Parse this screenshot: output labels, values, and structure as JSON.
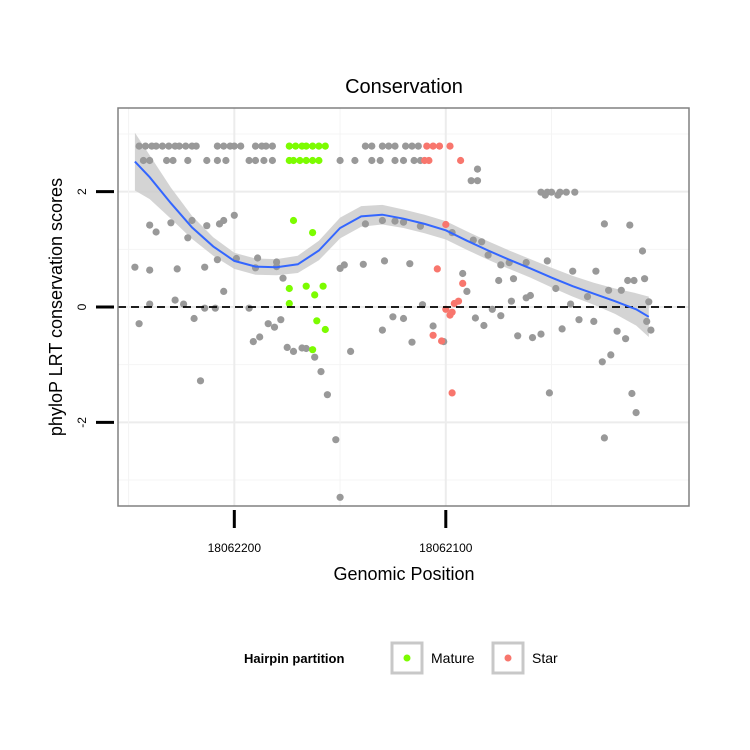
{
  "chart_data": {
    "type": "scatter",
    "title": "Conservation",
    "xlabel": "Genomic Position",
    "ylabel": "phyloP LRT conservation scores",
    "x_reversed": true,
    "xlim": [
      18062255,
      18061985
    ],
    "ylim": [
      -3.45,
      3.45
    ],
    "x_ticks": [
      {
        "value": 18062200,
        "label": "18062200"
      },
      {
        "value": 18062100,
        "label": "18062100"
      }
    ],
    "y_ticks": [
      {
        "value": -2,
        "label": "-2"
      },
      {
        "value": 0,
        "label": "0"
      },
      {
        "value": 2,
        "label": "2"
      }
    ],
    "grid": true,
    "reference_line": {
      "y": 0,
      "style": "dashed"
    },
    "legend": {
      "title": "Hairpin partition",
      "placement": "bottom",
      "entries": [
        {
          "label": "Mature",
          "color": "#7cfc00"
        },
        {
          "label": "Star",
          "color": "#f8766d"
        }
      ]
    },
    "colors": {
      "other": "#999999",
      "mature": "#7cfc00",
      "star": "#f8766d",
      "smooth": "#3366ff",
      "band": "#cccccc"
    },
    "series": [
      {
        "name": "Mature",
        "points": [
          [
            18062174,
            2.79
          ],
          [
            18062171,
            2.79
          ],
          [
            18062168,
            2.79
          ],
          [
            18062166,
            2.79
          ],
          [
            18062163,
            2.79
          ],
          [
            18062160,
            2.79
          ],
          [
            18062157,
            2.79
          ],
          [
            18062174,
            2.54
          ],
          [
            18062172,
            2.54
          ],
          [
            18062169,
            2.54
          ],
          [
            18062166,
            2.54
          ],
          [
            18062163,
            2.54
          ],
          [
            18062160,
            2.54
          ],
          [
            18062172,
            1.5
          ],
          [
            18062163,
            1.29
          ],
          [
            18062174,
            0.32
          ],
          [
            18062166,
            0.36
          ],
          [
            18062158,
            0.36
          ],
          [
            18062162,
            0.21
          ],
          [
            18062174,
            0.06
          ],
          [
            18062161,
            -0.24
          ],
          [
            18062157,
            -0.39
          ],
          [
            18062163,
            -0.74
          ]
        ]
      },
      {
        "name": "Star",
        "points": [
          [
            18062109,
            2.79
          ],
          [
            18062106,
            2.79
          ],
          [
            18062103,
            2.79
          ],
          [
            18062098,
            2.79
          ],
          [
            18062110,
            2.54
          ],
          [
            18062108,
            2.54
          ],
          [
            18062093,
            2.54
          ],
          [
            18062100,
            1.43
          ],
          [
            18062104,
            0.66
          ],
          [
            18062092,
            0.41
          ],
          [
            18062094,
            0.1
          ],
          [
            18062096,
            0.06
          ],
          [
            18062100,
            -0.04
          ],
          [
            18062097,
            -0.09
          ],
          [
            18062098,
            -0.14
          ],
          [
            18062106,
            -0.49
          ],
          [
            18062102,
            -0.59
          ],
          [
            18062097,
            -1.49
          ]
        ]
      },
      {
        "name": "",
        "points": [
          [
            18062245,
            2.79
          ],
          [
            18062242,
            2.79
          ],
          [
            18062239,
            2.79
          ],
          [
            18062237,
            2.79
          ],
          [
            18062234,
            2.79
          ],
          [
            18062231,
            2.79
          ],
          [
            18062228,
            2.79
          ],
          [
            18062226,
            2.79
          ],
          [
            18062223,
            2.79
          ],
          [
            18062220,
            2.79
          ],
          [
            18062218,
            2.79
          ],
          [
            18062208,
            2.79
          ],
          [
            18062205,
            2.79
          ],
          [
            18062202,
            2.79
          ],
          [
            18062200,
            2.79
          ],
          [
            18062197,
            2.79
          ],
          [
            18062190,
            2.79
          ],
          [
            18062187,
            2.79
          ],
          [
            18062185,
            2.79
          ],
          [
            18062182,
            2.79
          ],
          [
            18062138,
            2.79
          ],
          [
            18062135,
            2.79
          ],
          [
            18062130,
            2.79
          ],
          [
            18062127,
            2.79
          ],
          [
            18062124,
            2.79
          ],
          [
            18062119,
            2.79
          ],
          [
            18062116,
            2.79
          ],
          [
            18062113,
            2.79
          ],
          [
            18062243,
            2.54
          ],
          [
            18062240,
            2.54
          ],
          [
            18062232,
            2.54
          ],
          [
            18062229,
            2.54
          ],
          [
            18062222,
            2.54
          ],
          [
            18062213,
            2.54
          ],
          [
            18062208,
            2.54
          ],
          [
            18062204,
            2.54
          ],
          [
            18062193,
            2.54
          ],
          [
            18062190,
            2.54
          ],
          [
            18062186,
            2.54
          ],
          [
            18062182,
            2.54
          ],
          [
            18062150,
            2.54
          ],
          [
            18062143,
            2.54
          ],
          [
            18062135,
            2.54
          ],
          [
            18062131,
            2.54
          ],
          [
            18062124,
            2.54
          ],
          [
            18062120,
            2.54
          ],
          [
            18062115,
            2.54
          ],
          [
            18062112,
            2.54
          ],
          [
            18062085,
            2.39
          ],
          [
            18062088,
            2.19
          ],
          [
            18062085,
            2.19
          ],
          [
            18062055,
            1.99
          ],
          [
            18062052,
            1.99
          ],
          [
            18062050,
            1.99
          ],
          [
            18062053,
            1.94
          ],
          [
            18062046,
            1.99
          ],
          [
            18062043,
            1.99
          ],
          [
            18062039,
            1.99
          ],
          [
            18062047,
            1.94
          ],
          [
            18062025,
            1.44
          ],
          [
            18062013,
            1.42
          ],
          [
            18062007,
            0.97
          ],
          [
            18062200,
            1.59
          ],
          [
            18062205,
            1.5
          ],
          [
            18062207,
            1.44
          ],
          [
            18062220,
            1.5
          ],
          [
            18062213,
            1.41
          ],
          [
            18062230,
            1.46
          ],
          [
            18062237,
            1.3
          ],
          [
            18062240,
            1.42
          ],
          [
            18062222,
            1.2
          ],
          [
            18062208,
            0.82
          ],
          [
            18062199,
            0.84
          ],
          [
            18062189,
            0.85
          ],
          [
            18062180,
            0.78
          ],
          [
            18062177,
            0.5
          ],
          [
            18062130,
            1.5
          ],
          [
            18062124,
            1.49
          ],
          [
            18062138,
            1.44
          ],
          [
            18062120,
            1.47
          ],
          [
            18062112,
            1.4
          ],
          [
            18062097,
            1.29
          ],
          [
            18062087,
            1.16
          ],
          [
            18062083,
            1.13
          ],
          [
            18062070,
            0.77
          ],
          [
            18062062,
            0.77
          ],
          [
            18062080,
            0.9
          ],
          [
            18062074,
            0.73
          ],
          [
            18062052,
            0.8
          ],
          [
            18062040,
            0.62
          ],
          [
            18062029,
            0.62
          ],
          [
            18062247,
            0.69
          ],
          [
            18062240,
            0.64
          ],
          [
            18062227,
            0.66
          ],
          [
            18062214,
            0.69
          ],
          [
            18062190,
            0.68
          ],
          [
            18062180,
            0.7
          ],
          [
            18062150,
            0.67
          ],
          [
            18062148,
            0.73
          ],
          [
            18062139,
            0.74
          ],
          [
            18062129,
            0.8
          ],
          [
            18062117,
            0.75
          ],
          [
            18062092,
            0.58
          ],
          [
            18062075,
            0.46
          ],
          [
            18062068,
            0.49
          ],
          [
            18062017,
            0.29
          ],
          [
            18062014,
            0.46
          ],
          [
            18062011,
            0.46
          ],
          [
            18062006,
            0.49
          ],
          [
            18062023,
            0.29
          ],
          [
            18062004,
            0.09
          ],
          [
            18062245,
            -0.29
          ],
          [
            18062240,
            0.05
          ],
          [
            18062228,
            0.12
          ],
          [
            18062224,
            0.05
          ],
          [
            18062219,
            -0.2
          ],
          [
            18062214,
            -0.02
          ],
          [
            18062209,
            -0.02
          ],
          [
            18062205,
            0.27
          ],
          [
            18062193,
            -0.02
          ],
          [
            18062191,
            -0.6
          ],
          [
            18062188,
            -0.52
          ],
          [
            18062184,
            -0.29
          ],
          [
            18062181,
            -0.35
          ],
          [
            18062178,
            -0.22
          ],
          [
            18062175,
            -0.7
          ],
          [
            18062172,
            -0.77
          ],
          [
            18062168,
            -0.71
          ],
          [
            18062166,
            -0.72
          ],
          [
            18062162,
            -0.87
          ],
          [
            18062159,
            -1.12
          ],
          [
            18062156,
            -1.52
          ],
          [
            18062152,
            -2.3
          ],
          [
            18062150,
            -3.3
          ],
          [
            18062216,
            -1.28
          ],
          [
            18062145,
            -0.77
          ],
          [
            18062130,
            -0.4
          ],
          [
            18062125,
            -0.17
          ],
          [
            18062120,
            -0.2
          ],
          [
            18062116,
            -0.61
          ],
          [
            18062111,
            0.04
          ],
          [
            18062106,
            -0.33
          ],
          [
            18062101,
            -0.6
          ],
          [
            18062090,
            0.27
          ],
          [
            18062086,
            -0.19
          ],
          [
            18062082,
            -0.32
          ],
          [
            18062078,
            -0.04
          ],
          [
            18062074,
            -0.15
          ],
          [
            18062069,
            0.1
          ],
          [
            18062066,
            -0.5
          ],
          [
            18062062,
            0.16
          ],
          [
            18062059,
            -0.53
          ],
          [
            18062055,
            -0.47
          ],
          [
            18062051,
            -1.49
          ],
          [
            18062048,
            0.32
          ],
          [
            18062045,
            -0.38
          ],
          [
            18062041,
            0.05
          ],
          [
            18062037,
            -0.22
          ],
          [
            18062033,
            0.18
          ],
          [
            18062030,
            -0.25
          ],
          [
            18062026,
            -0.95
          ],
          [
            18062022,
            -0.83
          ],
          [
            18062019,
            -0.42
          ],
          [
            18062015,
            -0.55
          ],
          [
            18062012,
            -1.5
          ],
          [
            18062010,
            -1.83
          ],
          [
            18062005,
            -0.25
          ],
          [
            18062003,
            -0.4
          ],
          [
            18062025,
            -2.27
          ],
          [
            18062060,
            0.2
          ]
        ]
      }
    ],
    "smooth_curve": [
      [
        18062247,
        2.52
      ],
      [
        18062240,
        2.25
      ],
      [
        18062230,
        1.8
      ],
      [
        18062220,
        1.38
      ],
      [
        18062210,
        1.05
      ],
      [
        18062200,
        0.8
      ],
      [
        18062190,
        0.7
      ],
      [
        18062180,
        0.69
      ],
      [
        18062170,
        0.74
      ],
      [
        18062160,
        0.98
      ],
      [
        18062150,
        1.37
      ],
      [
        18062140,
        1.57
      ],
      [
        18062130,
        1.6
      ],
      [
        18062120,
        1.53
      ],
      [
        18062110,
        1.44
      ],
      [
        18062100,
        1.33
      ],
      [
        18062090,
        1.15
      ],
      [
        18062080,
        0.98
      ],
      [
        18062070,
        0.82
      ],
      [
        18062060,
        0.67
      ],
      [
        18062050,
        0.51
      ],
      [
        18062040,
        0.36
      ],
      [
        18062030,
        0.23
      ],
      [
        18062020,
        0.1
      ],
      [
        18062010,
        -0.04
      ],
      [
        18062004,
        -0.17
      ]
    ],
    "band_halfwidth": [
      0.5,
      0.38,
      0.27,
      0.2,
      0.16,
      0.14,
      0.14,
      0.14,
      0.15,
      0.17,
      0.18,
      0.18,
      0.17,
      0.16,
      0.16,
      0.16,
      0.16,
      0.16,
      0.16,
      0.16,
      0.17,
      0.18,
      0.19,
      0.22,
      0.28,
      0.35
    ]
  }
}
